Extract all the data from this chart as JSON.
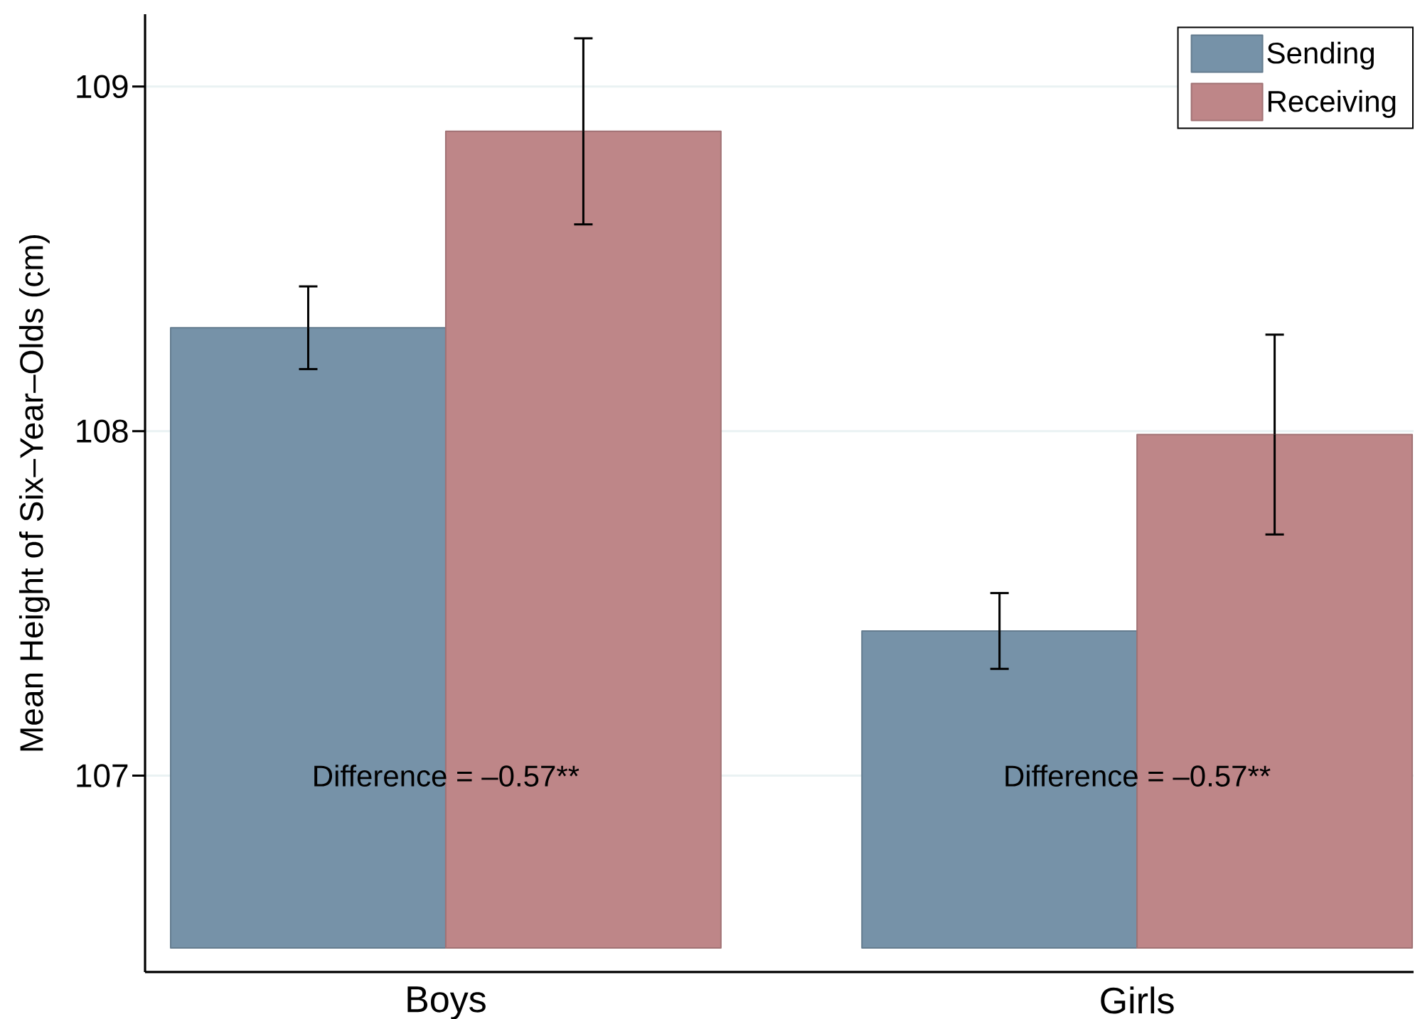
{
  "chart_data": {
    "type": "bar",
    "categories": [
      "Boys",
      "Girls"
    ],
    "series": [
      {
        "name": "Sending",
        "color": "#7692a8",
        "values": [
          1.8,
          0.92
        ],
        "base": [
          106.5,
          106.5
        ],
        "errors": [
          0.12,
          0.11
        ]
      },
      {
        "name": "Receiving",
        "color": "#be8688",
        "values": [
          2.37,
          1.49
        ],
        "base": [
          106.5,
          106.5
        ],
        "errors": [
          0.27,
          0.29
        ]
      }
    ],
    "ylabel": "Mean Height of Six–Year–Olds (cm)",
    "ylim": [
      106.43,
      109.21
    ],
    "yticks": [
      107,
      108,
      109
    ],
    "grid": "y",
    "legend": "top right",
    "annotations": [
      {
        "text": "Difference = –0.57**",
        "x": "Boys",
        "y": 107
      },
      {
        "text": "Difference = –0.57**",
        "x": "Girls",
        "y": 107
      }
    ]
  }
}
